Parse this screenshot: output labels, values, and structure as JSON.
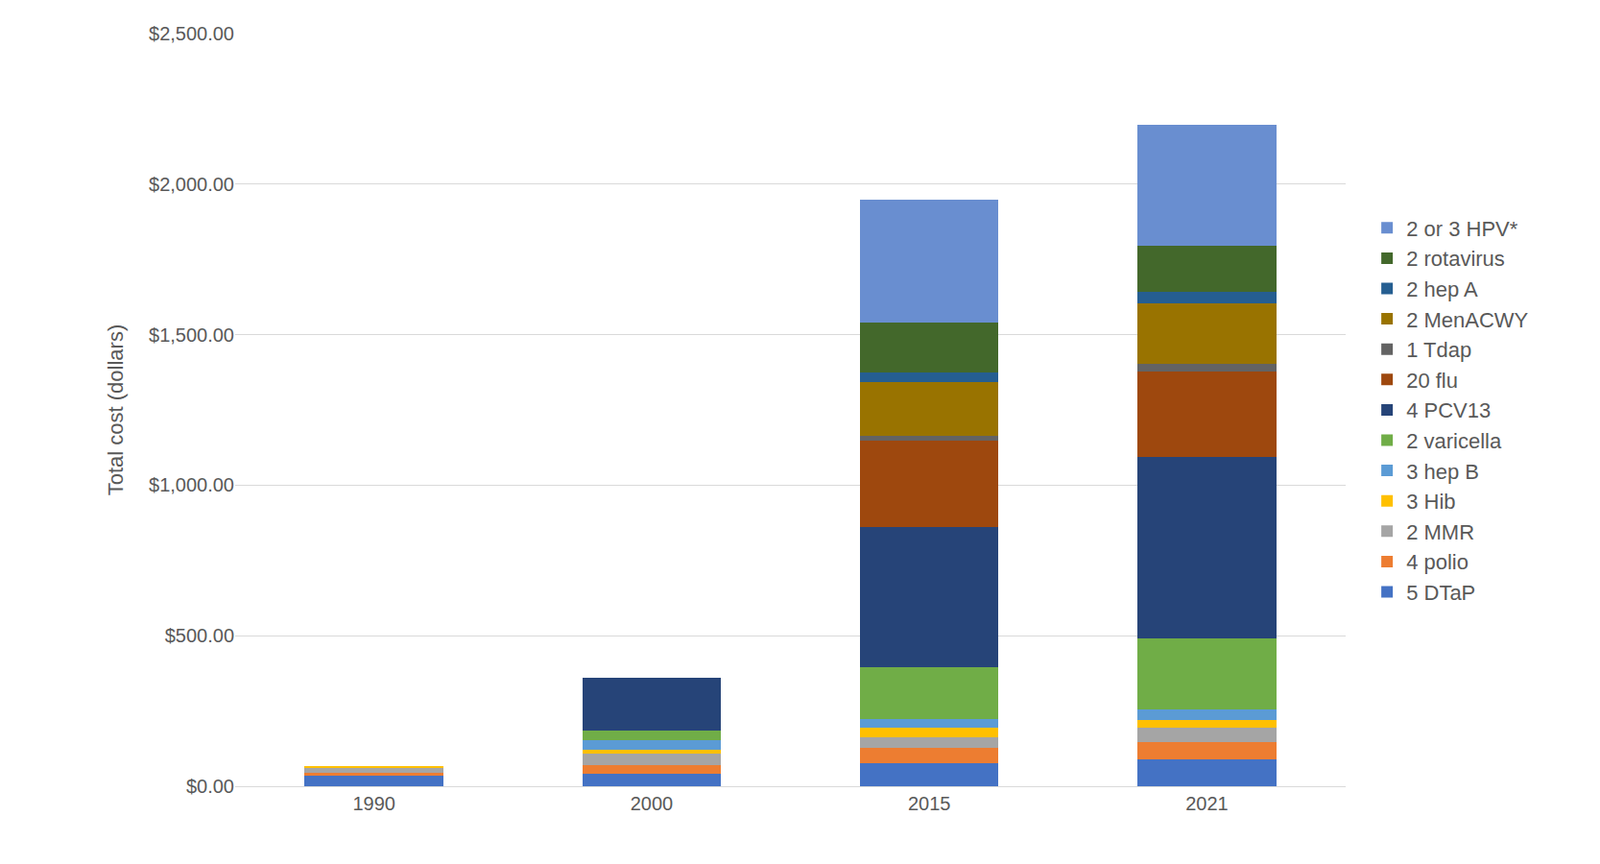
{
  "chart_data": {
    "type": "bar",
    "stacked": true,
    "grid": true,
    "legend": "right",
    "y_label": "Total cost (dollars)",
    "categories": [
      "1990",
      "2000",
      "2015",
      "2021"
    ],
    "ylim": [
      0,
      2500
    ],
    "yticks": [
      {
        "value": 0,
        "label": "$0.00"
      },
      {
        "value": 500,
        "label": "$500.00"
      },
      {
        "value": 1000,
        "label": "$1,000.00"
      },
      {
        "value": 1500,
        "label": "$1,500.00"
      },
      {
        "value": 2000,
        "label": "$2,000.00"
      },
      {
        "value": 2500,
        "label": "$2,500.00"
      }
    ],
    "series": [
      {
        "name": "5 DTaP",
        "color": "#4472c4",
        "values": [
          35,
          41,
          75,
          88
        ]
      },
      {
        "name": "4 polio",
        "color": "#ed7d31",
        "values": [
          10,
          30,
          54,
          58
        ]
      },
      {
        "name": "2 MMR",
        "color": "#a5a5a5",
        "values": [
          15,
          37,
          34,
          48
        ]
      },
      {
        "name": "3 Hib",
        "color": "#ffc000",
        "values": [
          8,
          14,
          30,
          27
        ]
      },
      {
        "name": "3 hep B",
        "color": "#5b9bd5",
        "values": [
          null,
          30,
          30,
          34
        ]
      },
      {
        "name": "2 varicella",
        "color": "#70ad47",
        "values": [
          null,
          34,
          173,
          235
        ]
      },
      {
        "name": "4 PCV13",
        "color": "#264478",
        "values": [
          null,
          175,
          466,
          605
        ]
      },
      {
        "name": "20 flu",
        "color": "#9e480e",
        "values": [
          null,
          null,
          286,
          282
        ]
      },
      {
        "name": "1 Tdap",
        "color": "#636363",
        "values": [
          null,
          null,
          17,
          27
        ]
      },
      {
        "name": "2 MenACWY",
        "color": "#997300",
        "values": [
          null,
          null,
          177,
          201
        ]
      },
      {
        "name": "2 hep A",
        "color": "#255e91",
        "values": [
          null,
          null,
          31,
          37
        ]
      },
      {
        "name": "2 rotavirus",
        "color": "#43682b",
        "values": [
          null,
          null,
          167,
          153
        ]
      },
      {
        "name": "2 or 3 HPV*",
        "color": "#698ed0",
        "values": [
          null,
          null,
          408,
          401
        ]
      }
    ]
  }
}
